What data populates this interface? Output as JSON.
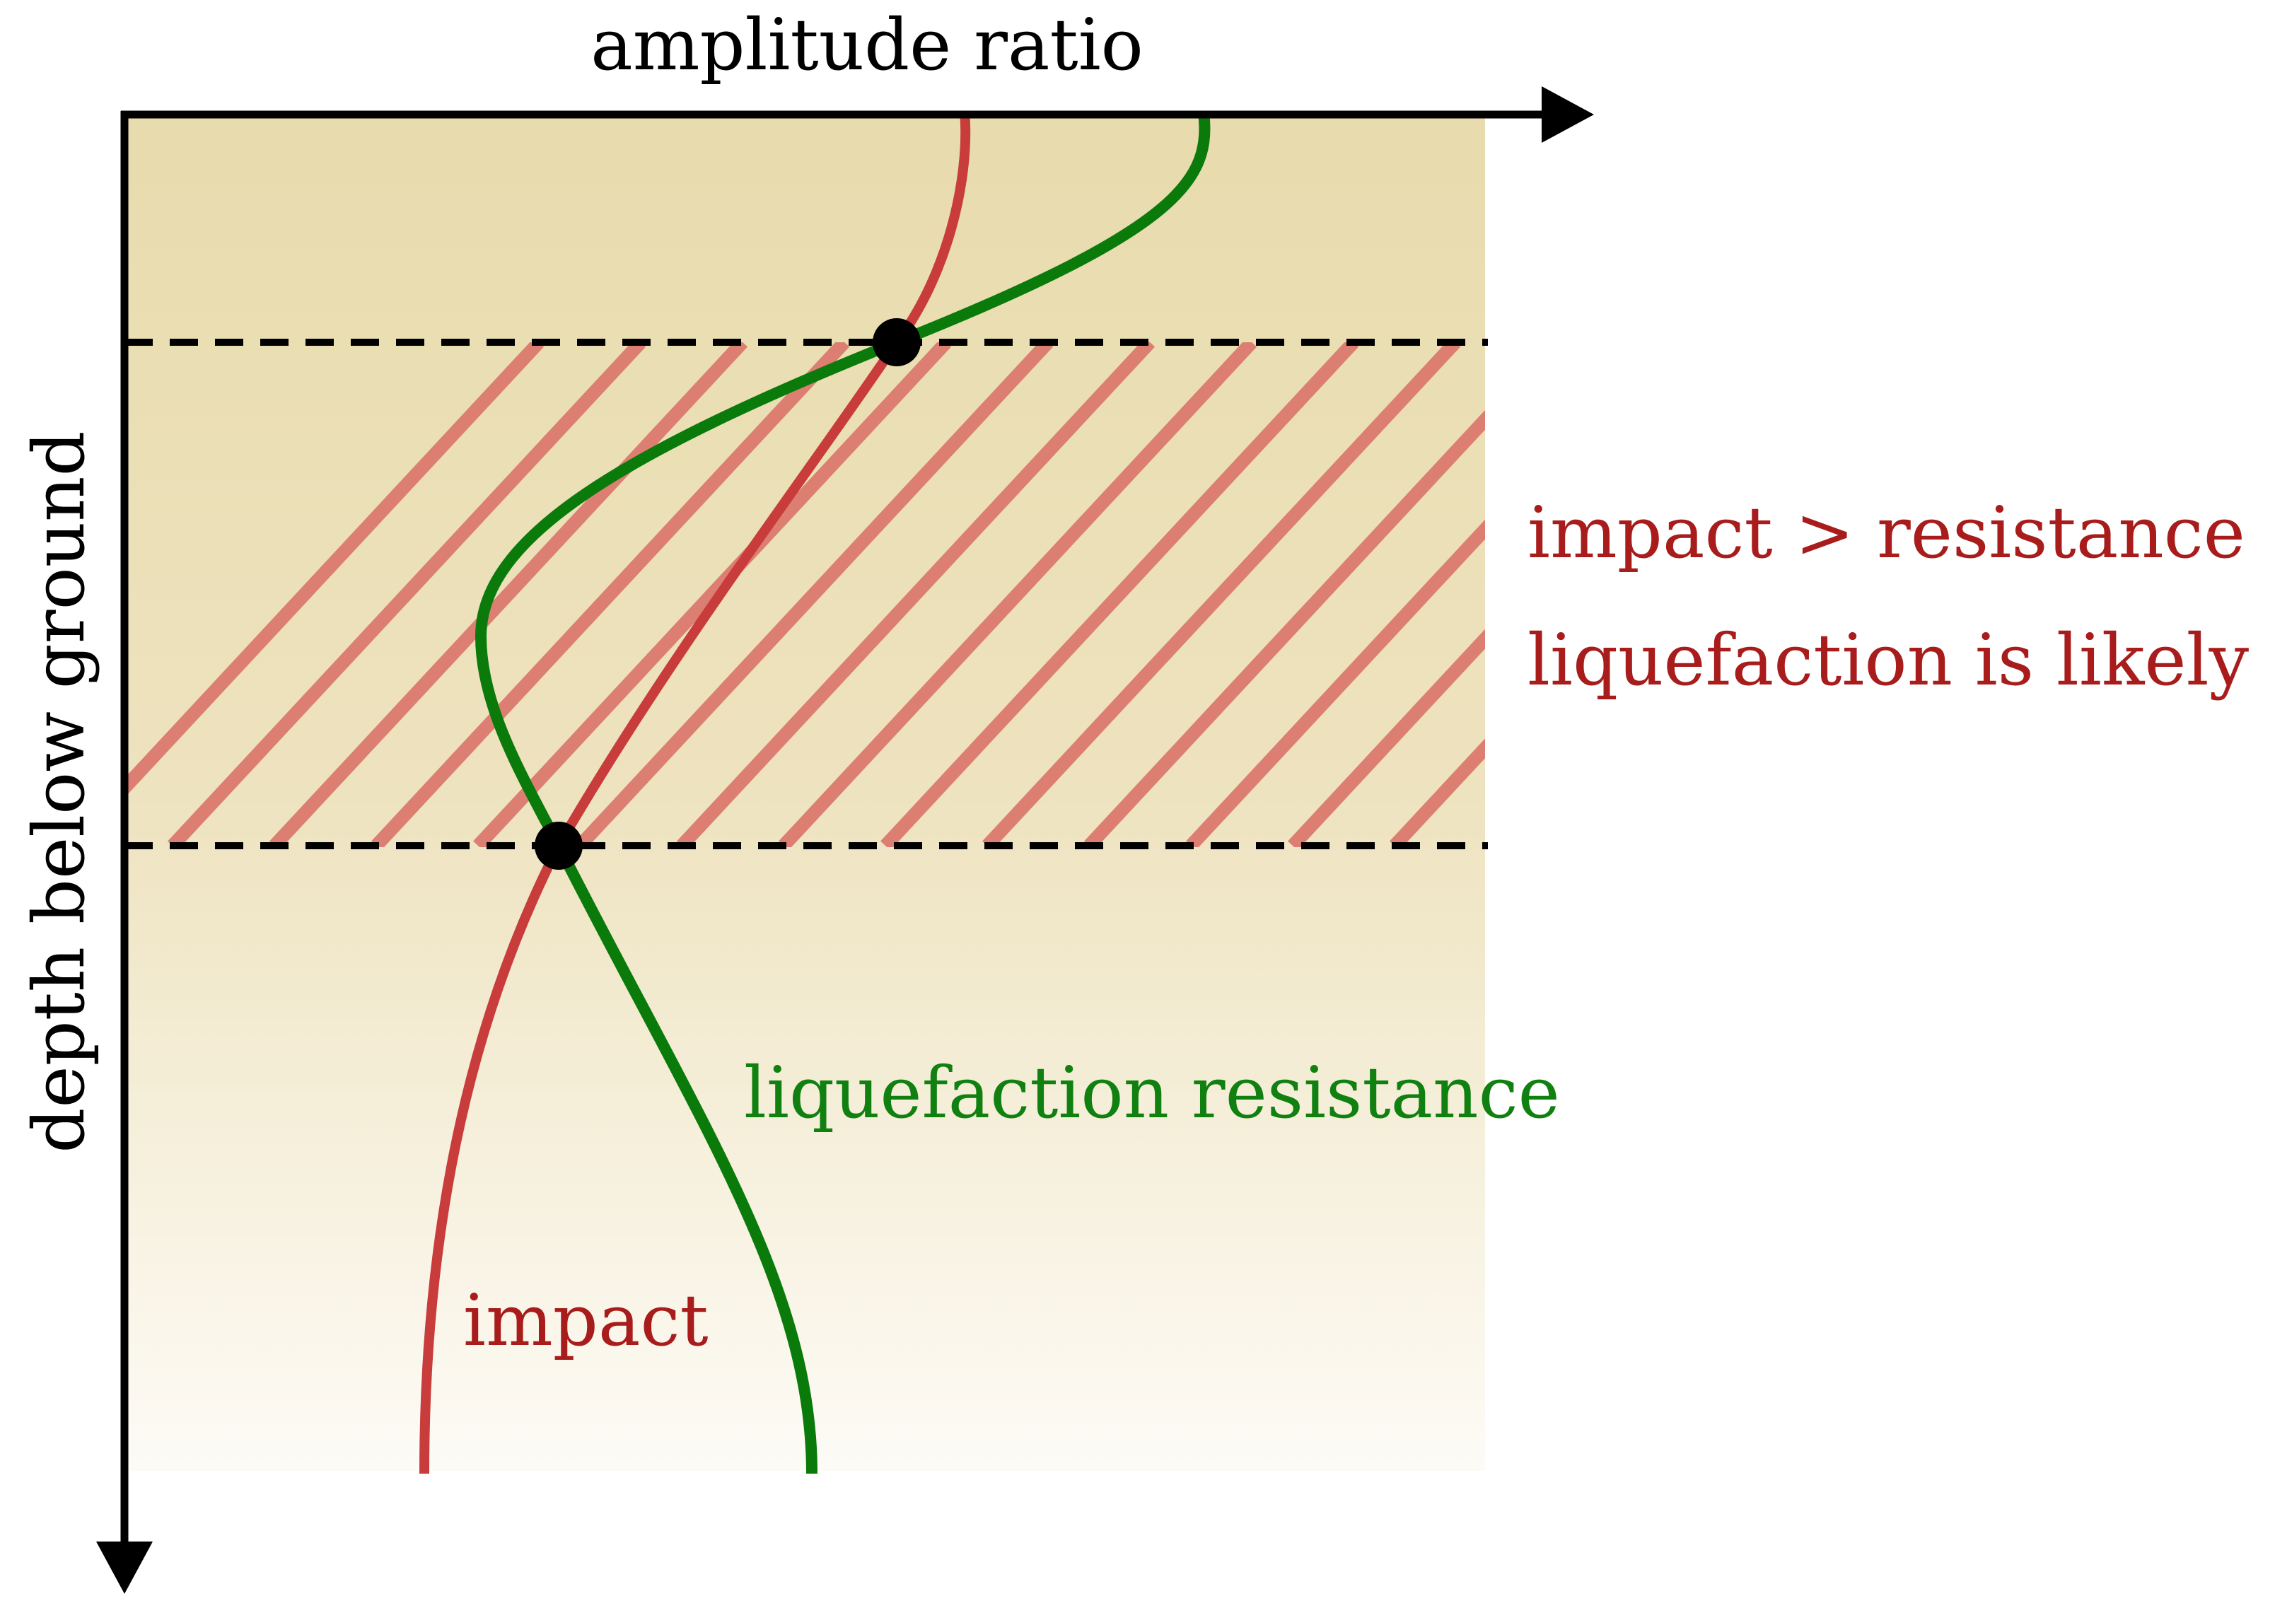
{
  "labels": {
    "x_axis": "amplitude ratio",
    "y_axis": "depth below ground",
    "impact_curve": "impact",
    "resistance_curve": "liquefaction resistance",
    "zone_condition": "impact > resistance",
    "zone_conclusion": "liquefaction is likely"
  },
  "colors": {
    "soil_top": "#e8dbad",
    "soil_bottom": "#fdfbf6",
    "impact": "#c83c3c",
    "impact_text": "#a81c1c",
    "resistance": "#0a7a0a",
    "resistance_text": "#108010",
    "hatch": "#dc7f72",
    "axis": "#000000"
  }
}
